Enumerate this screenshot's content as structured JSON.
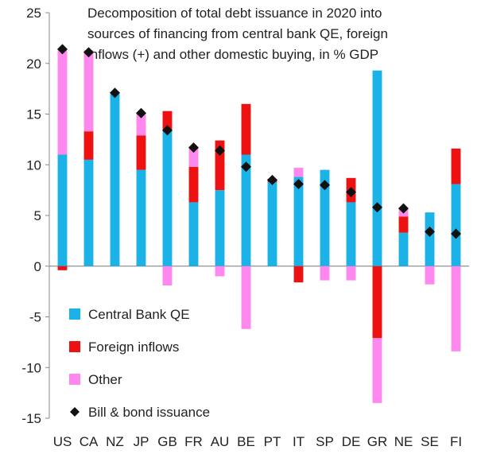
{
  "chart_data": {
    "type": "bar",
    "stacked": true,
    "title_lines": [
      "Decomposition of total debt issuance in 2020 into",
      "sources of financing from central bank QE, foreign",
      "inflows (+) and other domestic buying, in % GDP"
    ],
    "categories": [
      "US",
      "CA",
      "NZ",
      "JP",
      "GB",
      "FR",
      "AU",
      "BE",
      "PT",
      "IT",
      "SP",
      "DE",
      "GR",
      "NE",
      "SE",
      "FI"
    ],
    "series": [
      {
        "name": "Central Bank QE",
        "color": "#1BB2E8",
        "values": [
          11.0,
          10.5,
          17.0,
          9.5,
          13.5,
          6.3,
          7.5,
          11.0,
          8.3,
          8.8,
          9.5,
          6.3,
          19.3,
          3.3,
          5.3,
          8.1
        ]
      },
      {
        "name": "Foreign inflows",
        "color": "#EE1111",
        "values": [
          -0.4,
          2.8,
          0,
          3.4,
          1.8,
          3.5,
          4.9,
          5.0,
          0.3,
          -1.6,
          0,
          2.4,
          -7.1,
          1.6,
          0,
          3.5
        ]
      },
      {
        "name": "Other",
        "color": "#FF88EE",
        "values": [
          10.3,
          8.0,
          0,
          2.2,
          -1.9,
          1.9,
          -1.0,
          -6.2,
          0,
          0.9,
          -1.4,
          -1.4,
          -6.4,
          0.8,
          -1.8,
          -8.4
        ]
      }
    ],
    "markers": {
      "name": "Bill & bond issuance",
      "color": "#111111",
      "values": [
        21.4,
        21.1,
        17.1,
        15.1,
        13.4,
        11.7,
        11.4,
        9.8,
        8.5,
        8.1,
        8.0,
        7.3,
        5.8,
        5.7,
        3.4,
        3.2
      ]
    },
    "ylim": [
      -15,
      25
    ],
    "yticks": [
      -15,
      -10,
      -5,
      0,
      5,
      10,
      15,
      20,
      25
    ],
    "xlabel": "",
    "ylabel": "",
    "legend_position": "bottom-left",
    "grid": false
  }
}
